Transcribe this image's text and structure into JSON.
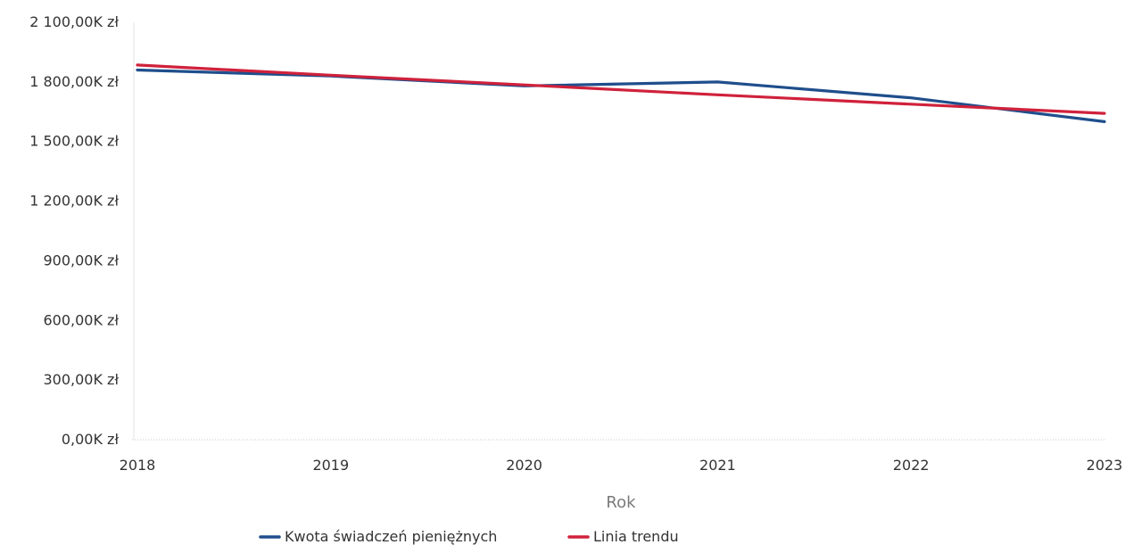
{
  "chart_data": {
    "type": "line",
    "title": "",
    "xlabel": "Rok",
    "ylabel": "",
    "x": [
      "2018",
      "2019",
      "2020",
      "2021",
      "2022",
      "2023"
    ],
    "ylim": [
      0,
      2100000
    ],
    "yticks": [
      0,
      300000,
      600000,
      900000,
      1200000,
      1500000,
      1800000,
      2100000
    ],
    "ytick_labels": [
      "0,00K zł",
      "300,00K zł",
      "600,00K zł",
      "900,00K zł",
      "1 200,00K zł",
      "1 500,00K zł",
      "1 800,00K zł",
      "2 100,00K zł"
    ],
    "grid": false,
    "legend_position": "bottom-center",
    "series": [
      {
        "name": "Kwota świadczeń pieniężnych",
        "color": "#1f4e8c",
        "values": [
          1860000,
          1830000,
          1780000,
          1800000,
          1720000,
          1600000
        ]
      },
      {
        "name": "Linia trendu",
        "color": "#d0213b",
        "values": [
          1885000,
          1834000,
          1785000,
          1735000,
          1688000,
          1642000
        ]
      }
    ]
  }
}
